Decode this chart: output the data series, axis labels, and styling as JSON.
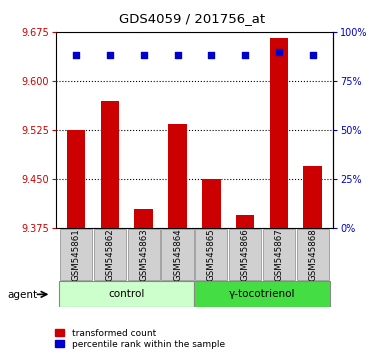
{
  "title": "GDS4059 / 201756_at",
  "samples": [
    "GSM545861",
    "GSM545862",
    "GSM545863",
    "GSM545864",
    "GSM545865",
    "GSM545866",
    "GSM545867",
    "GSM545868"
  ],
  "transformed_counts": [
    9.525,
    9.57,
    9.405,
    9.535,
    9.45,
    9.395,
    9.665,
    9.47
  ],
  "percentile_values": [
    0.88,
    0.88,
    0.88,
    0.88,
    0.88,
    0.88,
    0.9,
    0.88
  ],
  "group_labels": [
    "control",
    "γ-tocotrienol"
  ],
  "group_colors_light": "#ccffcc",
  "group_colors_dark": "#44dd44",
  "bar_color": "#cc0000",
  "dot_color": "#0000cc",
  "ymin": 9.375,
  "ymax": 9.675,
  "yticks": [
    9.375,
    9.45,
    9.525,
    9.6,
    9.675
  ],
  "y2ticklabels": [
    "0%",
    "25%",
    "50%",
    "75%",
    "100%"
  ],
  "y2ticks": [
    0.0,
    0.25,
    0.5,
    0.75,
    1.0
  ],
  "ylabel_color": "#cc0000",
  "y2label_color": "#0000cc",
  "base_value": 9.375,
  "tick_bg": "#d0d0d0"
}
